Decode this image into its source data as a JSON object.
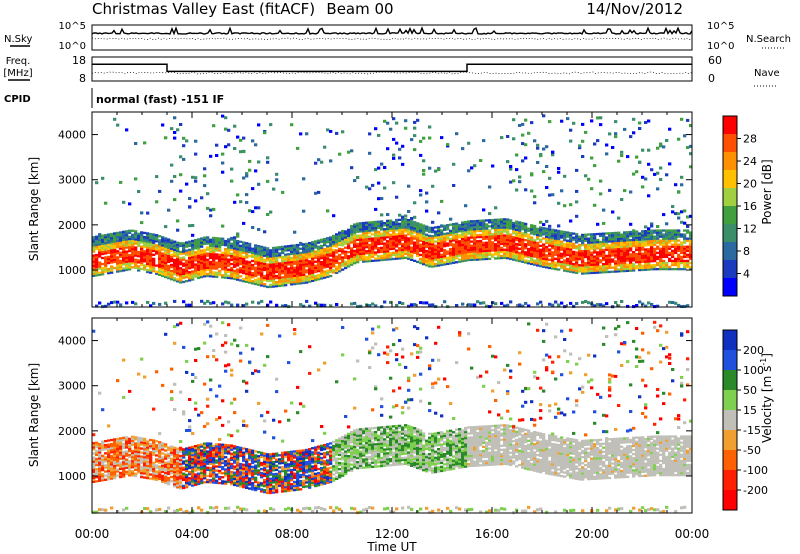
{
  "header": {
    "station": "Christmas Valley East (fitACF)",
    "beam": "Beam 00",
    "date": "14/Nov/2012"
  },
  "noise_panel": {
    "left_label": "N.Sky",
    "left_ticks": [
      "10^5",
      "10^0"
    ],
    "right_label": "N.Search",
    "right_ticks": [
      "10^5",
      "10^0"
    ]
  },
  "freq_panel": {
    "left_label": [
      "Freq.",
      "[MHz]"
    ],
    "left_ticks": [
      "18",
      "8"
    ],
    "right_label": "Nave",
    "right_ticks": [
      "60",
      "0"
    ],
    "freq_steps": [
      {
        "t": 0,
        "f": 15
      },
      {
        "t": 3,
        "f": 12
      },
      {
        "t": 15,
        "f": 15
      },
      {
        "t": 24,
        "f": 15
      }
    ]
  },
  "cpid": {
    "label": "CPID",
    "text": "normal (fast) -151 IF"
  },
  "chart_data": [
    {
      "type": "heatmap",
      "name": "power",
      "xlabel": "Time UT",
      "ylabel": "Slant Range [km]",
      "xlim": [
        0,
        24
      ],
      "ylim": [
        180,
        4500
      ],
      "x_ticks": [
        "00:00",
        "04:00",
        "08:00",
        "12:00",
        "16:00",
        "20:00",
        "00:00"
      ],
      "y_ticks": [
        "1000",
        "2000",
        "3000",
        "4000"
      ],
      "colorbar_label": "Power [dB]",
      "colorbar_ticks": [
        "28",
        "24",
        "20",
        "16",
        "12",
        "8",
        "4"
      ],
      "colorbar_colors": [
        "#ff0000",
        "#ff5000",
        "#ff9000",
        "#ffc000",
        "#a0d040",
        "#40a040",
        "#3a8f6a",
        "#2a6aa0",
        "#1a3ac0",
        "#0000ff"
      ],
      "main_band": [
        [
          0.0,
          1200
        ],
        [
          1.5,
          1350
        ],
        [
          2.5,
          1250
        ],
        [
          3.5,
          1050
        ],
        [
          4.5,
          1200
        ],
        [
          5.5,
          1150
        ],
        [
          7.0,
          950
        ],
        [
          8.5,
          1050
        ],
        [
          9.5,
          1200
        ],
        [
          10.5,
          1500
        ],
        [
          11.5,
          1550
        ],
        [
          12.5,
          1600
        ],
        [
          13.5,
          1400
        ],
        [
          15.0,
          1550
        ],
        [
          16.5,
          1600
        ],
        [
          18.0,
          1400
        ],
        [
          19.5,
          1250
        ],
        [
          21.0,
          1300
        ],
        [
          22.5,
          1350
        ],
        [
          24.0,
          1350
        ]
      ]
    },
    {
      "type": "heatmap",
      "name": "velocity",
      "xlabel": "Time UT",
      "ylabel": "Slant Range [km]",
      "xlim": [
        0,
        24
      ],
      "ylim": [
        180,
        4500
      ],
      "x_ticks": [
        "00:00",
        "04:00",
        "08:00",
        "12:00",
        "16:00",
        "20:00",
        "00:00"
      ],
      "y_ticks": [
        "1000",
        "2000",
        "3000",
        "4000"
      ],
      "colorbar_label": "Velocity [m s^-1]",
      "colorbar_ticks": [
        "200",
        "100",
        "50",
        "15",
        "-15",
        "-50",
        "-100",
        "-200"
      ],
      "colorbar_colors": [
        "#1030c0",
        "#2050e0",
        "#2a8a2a",
        "#80d050",
        "#c0c0b8",
        "#f0a030",
        "#ff6000",
        "#ff2000",
        "#ff0000"
      ]
    }
  ]
}
